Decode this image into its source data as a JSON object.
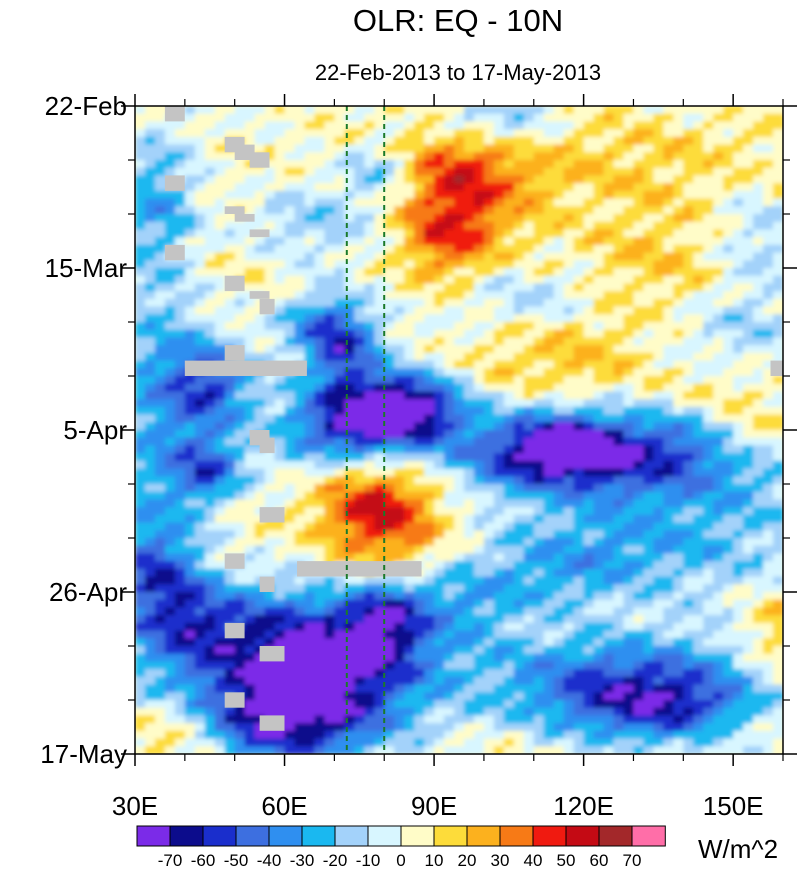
{
  "chart_data": {
    "type": "heatmap",
    "title": "OLR: EQ - 10N",
    "subtitle": "22-Feb-2013 to 17-May-2013",
    "units_label": "W/m^2",
    "x_range": [
      30,
      160
    ],
    "y_range_days": [
      0,
      84
    ],
    "x_ticks": [
      {
        "value": 30,
        "label": "30E"
      },
      {
        "value": 60,
        "label": "60E"
      },
      {
        "value": 90,
        "label": "90E"
      },
      {
        "value": 120,
        "label": "120E"
      },
      {
        "value": 150,
        "label": "150E"
      }
    ],
    "y_ticks": [
      {
        "day": 0,
        "label": "22-Feb"
      },
      {
        "day": 21,
        "label": "15-Mar"
      },
      {
        "day": 42,
        "label": "5-Apr"
      },
      {
        "day": 63,
        "label": "26-Apr"
      },
      {
        "day": 84,
        "label": "17-May"
      }
    ],
    "reference_lines_lon": [
      72.5,
      80
    ],
    "colorbar": {
      "levels": [
        "-70",
        "-60",
        "-50",
        "-40",
        "-30",
        "-20",
        "-10",
        "0",
        "10",
        "20",
        "30",
        "40",
        "50",
        "60",
        "70"
      ],
      "colors": [
        "#7b2be8",
        "#0c0c8c",
        "#1a2ecc",
        "#3d6fe0",
        "#2f8ff0",
        "#1ab8f0",
        "#a3d2fa",
        "#d8f6ff",
        "#fffcc8",
        "#fddc3a",
        "#fcb11e",
        "#f77a16",
        "#f01a10",
        "#c40a14",
        "#a3282a",
        "#ff6ea8"
      ]
    },
    "missing_color": "#c4c4c4"
  }
}
